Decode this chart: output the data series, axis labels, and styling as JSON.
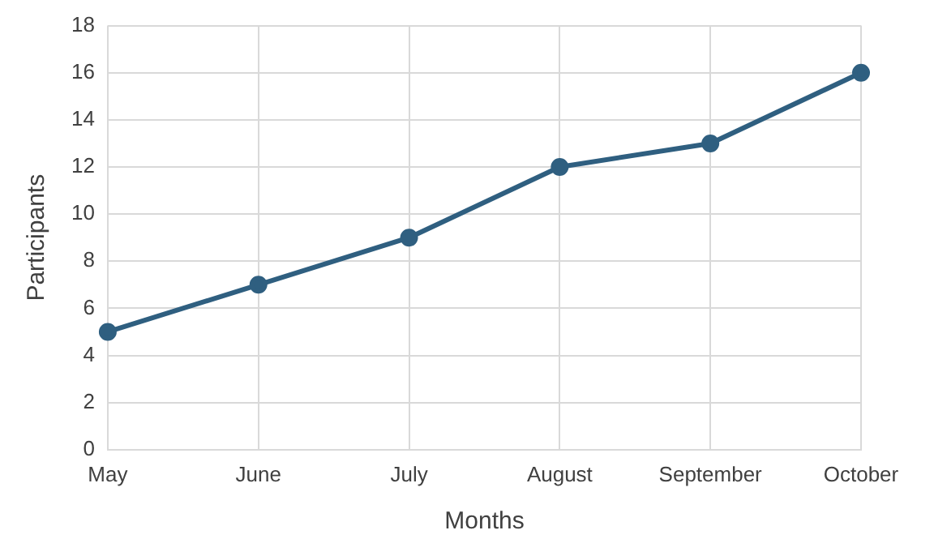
{
  "chart_data": {
    "type": "line",
    "xlabel": "Months",
    "ylabel": "Participants",
    "categories": [
      "May",
      "June",
      "July",
      "August",
      "September",
      "October"
    ],
    "series": [
      {
        "color": "#2f5f80",
        "values": [
          5,
          7,
          9,
          12,
          13,
          16
        ]
      }
    ],
    "ylim": [
      0,
      18
    ],
    "yticks": [
      0,
      2,
      4,
      6,
      8,
      10,
      12,
      14,
      16,
      18
    ],
    "grid": true,
    "marker": "circle",
    "legend": false
  }
}
